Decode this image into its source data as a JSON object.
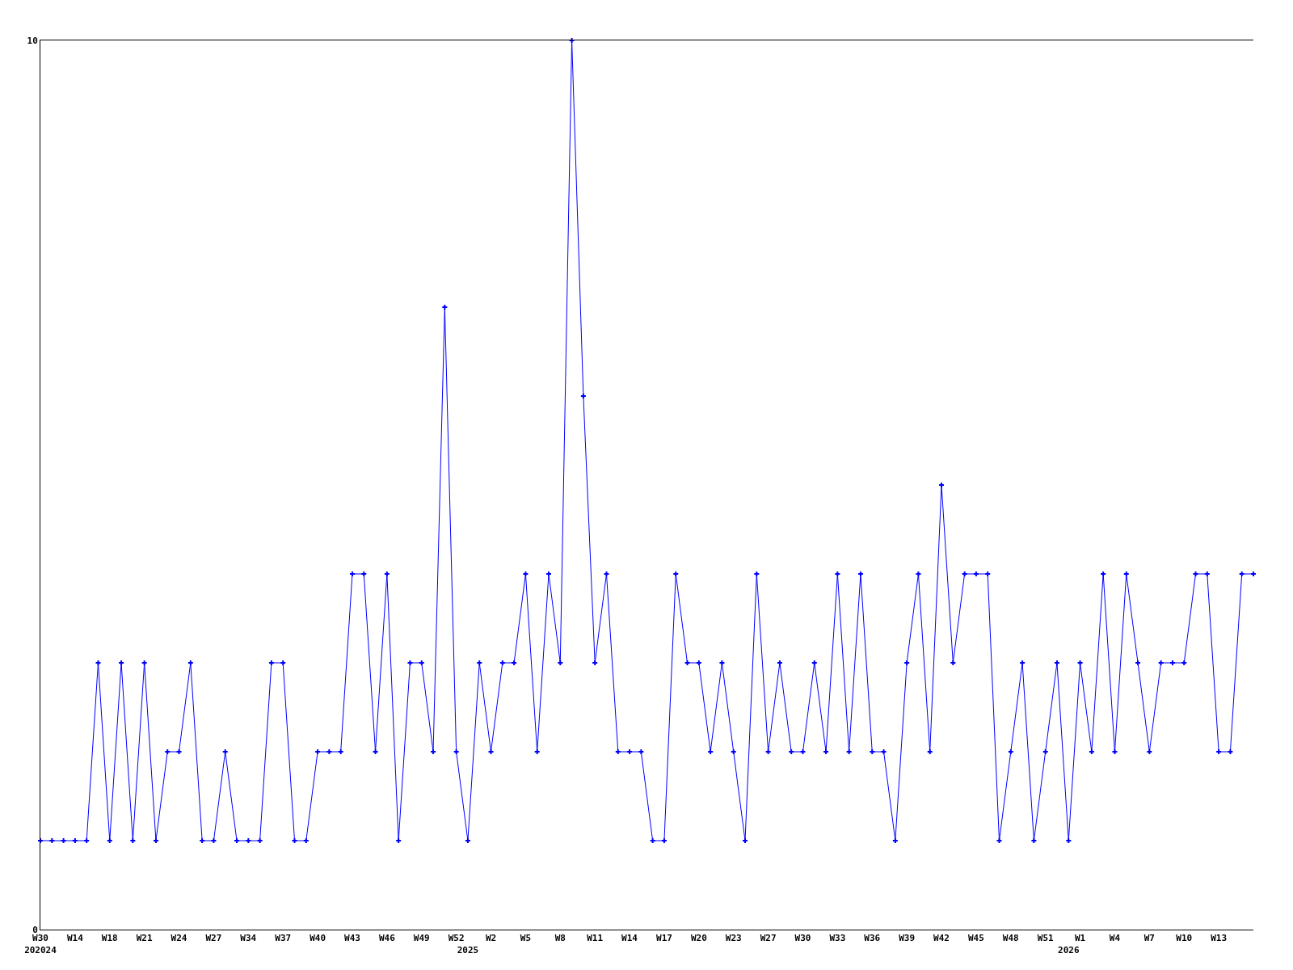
{
  "chart_data": {
    "type": "line",
    "categories": [
      "W30\n202024",
      null,
      null,
      "W14",
      null,
      null,
      "W18",
      null,
      null,
      "W21",
      null,
      null,
      "W24",
      null,
      null,
      "W27",
      null,
      null,
      "W34",
      null,
      null,
      "W37",
      null,
      null,
      "W40",
      null,
      null,
      "W43",
      null,
      null,
      "W46",
      null,
      null,
      "W49",
      null,
      null,
      "W52",
      "\n2025",
      null,
      "W2",
      null,
      null,
      "W5",
      null,
      null,
      "W8",
      null,
      null,
      "W11",
      null,
      null,
      "W14",
      null,
      null,
      "W17",
      null,
      null,
      "W20",
      null,
      null,
      "W23",
      null,
      null,
      "W27",
      null,
      null,
      "W30",
      null,
      null,
      "W33",
      null,
      null,
      "W36",
      null,
      null,
      "W39",
      null,
      null,
      "W42",
      null,
      null,
      "W45",
      null,
      null,
      "W48",
      null,
      null,
      "W51",
      null,
      "\n2026",
      "W1",
      null,
      null,
      "W4",
      null,
      null,
      "W7",
      null,
      null,
      "W10",
      null,
      null,
      "W13",
      null,
      null,
      null
    ],
    "series": [
      {
        "color": "#0000ff",
        "values": [
          1,
          1,
          1,
          1,
          1,
          3,
          1,
          3,
          1,
          3,
          1,
          2,
          2,
          3,
          1,
          1,
          2,
          1,
          1,
          1,
          3,
          3,
          1,
          1,
          2,
          2,
          2,
          4,
          4,
          2,
          4,
          1,
          3,
          3,
          2,
          7,
          2,
          1,
          3,
          2,
          3,
          3,
          4,
          2,
          4,
          3,
          10,
          6,
          3,
          4,
          2,
          2,
          2,
          1,
          1,
          4,
          3,
          3,
          2,
          3,
          2,
          1,
          4,
          2,
          3,
          2,
          2,
          3,
          2,
          4,
          2,
          4,
          2,
          2,
          1,
          3,
          4,
          2,
          5,
          3,
          4,
          4,
          4,
          1,
          2,
          3,
          1,
          2,
          3,
          1,
          3,
          2,
          4,
          2,
          4,
          3,
          2,
          3,
          3,
          3,
          4,
          4,
          2,
          2,
          4,
          4
        ]
      }
    ],
    "ylim": [
      0,
      10
    ],
    "yticks": [
      0,
      10
    ],
    "grid": false,
    "marker": "cross",
    "line_style": "solid"
  }
}
